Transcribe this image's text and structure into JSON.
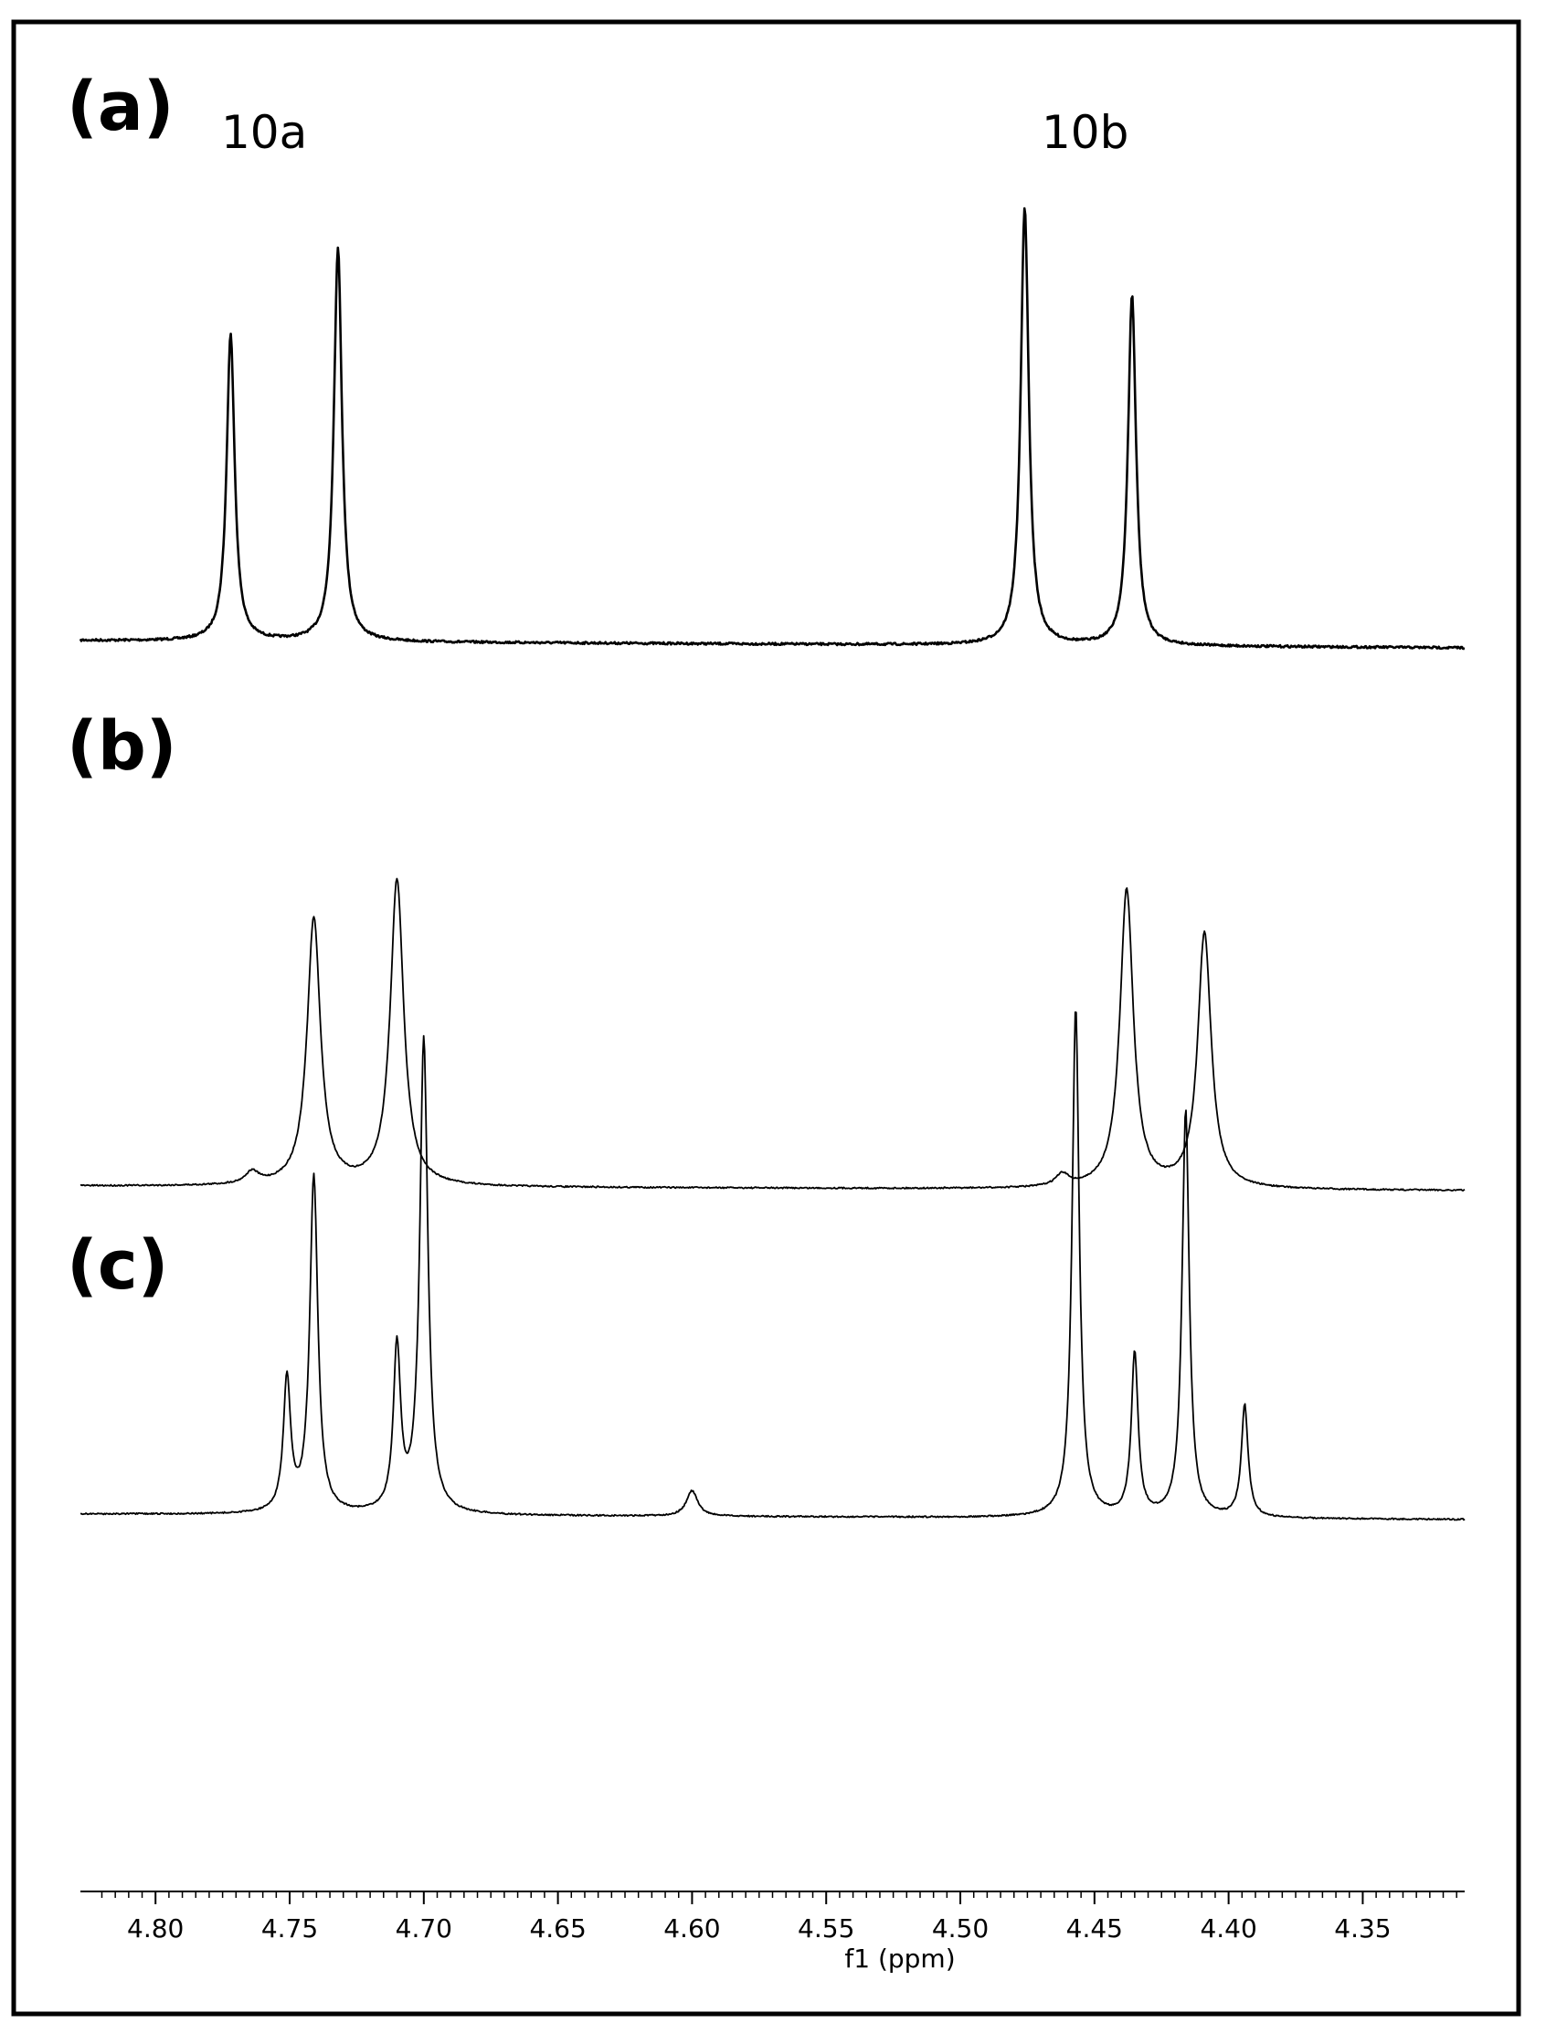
{
  "chart_data": {
    "type": "line",
    "xlabel": "f1 (ppm)",
    "xlim": [
      4.828,
      4.312
    ],
    "x_reversed": true,
    "x_ticks": [
      "4.80",
      "4.75",
      "4.70",
      "4.65",
      "4.60",
      "4.55",
      "4.50",
      "4.45",
      "4.40",
      "4.35"
    ],
    "x_tick_values": [
      4.8,
      4.75,
      4.7,
      4.65,
      4.6,
      4.55,
      4.5,
      4.45,
      4.4,
      4.35
    ],
    "frame": true,
    "grid": false,
    "panels": [
      {
        "label": "(a)",
        "annotations": [
          {
            "text": "10a",
            "x": 4.755
          },
          {
            "text": "10b",
            "x": 4.453
          }
        ],
        "peaks": [
          {
            "x": 4.772,
            "height": 0.7,
            "width": 0.0018
          },
          {
            "x": 4.732,
            "height": 0.9,
            "width": 0.0018
          },
          {
            "x": 4.476,
            "height": 1.0,
            "width": 0.0018
          },
          {
            "x": 4.436,
            "height": 0.8,
            "width": 0.0018
          }
        ]
      },
      {
        "label": "(b)",
        "peaks": [
          {
            "x": 4.741,
            "height": 0.68,
            "width": 0.003
          },
          {
            "x": 4.71,
            "height": 0.78,
            "width": 0.003
          },
          {
            "x": 4.438,
            "height": 0.76,
            "width": 0.003
          },
          {
            "x": 4.409,
            "height": 0.65,
            "width": 0.003
          },
          {
            "x": 4.764,
            "height": 0.03,
            "width": 0.003
          },
          {
            "x": 4.462,
            "height": 0.03,
            "width": 0.003
          }
        ]
      },
      {
        "label": "(c)",
        "peaks": [
          {
            "x": 4.751,
            "height": 0.26,
            "width": 0.0016
          },
          {
            "x": 4.741,
            "height": 0.66,
            "width": 0.0018
          },
          {
            "x": 4.71,
            "height": 0.32,
            "width": 0.0016
          },
          {
            "x": 4.7,
            "height": 0.93,
            "width": 0.0018
          },
          {
            "x": 4.6,
            "height": 0.05,
            "width": 0.0025
          },
          {
            "x": 4.457,
            "height": 1.0,
            "width": 0.0016
          },
          {
            "x": 4.435,
            "height": 0.32,
            "width": 0.0015
          },
          {
            "x": 4.416,
            "height": 0.8,
            "width": 0.0016
          },
          {
            "x": 4.394,
            "height": 0.22,
            "width": 0.0015
          }
        ]
      }
    ]
  }
}
